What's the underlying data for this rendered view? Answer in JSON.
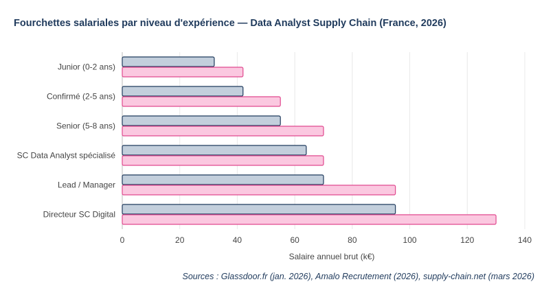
{
  "title": "Fourchettes salariales par niveau d'expérience — Data Analyst Supply Chain (France, 2026)",
  "source": "Sources : Glassdoor.fr (jan. 2026), Amalo Recrutement (2026), supply-chain.net (mars 2026)",
  "colors": {
    "series_low_fill": "#c3cfdc",
    "series_low_stroke": "#1f3a5c",
    "series_high_fill": "#fbc8e0",
    "series_high_stroke": "#e0488e",
    "grid": "#e8e8e8",
    "text": "#444444"
  },
  "chart_data": {
    "type": "bar",
    "orientation": "horizontal",
    "categories": [
      "Junior (0-2 ans)",
      "Confirmé (2-5 ans)",
      "Senior (5-8 ans)",
      "SC Data Analyst spécialisé",
      "Lead / Manager",
      "Directeur SC Digital"
    ],
    "series": [
      {
        "values": [
          32,
          42,
          55,
          64,
          70,
          95
        ]
      },
      {
        "values": [
          42,
          55,
          70,
          70,
          95,
          130
        ]
      }
    ],
    "xlabel": "Salaire annuel brut (k€)",
    "ylabel": "",
    "xlim": [
      0,
      140
    ],
    "xticks": [
      "0",
      "20",
      "40",
      "60",
      "80",
      "100",
      "120",
      "140"
    ],
    "grid": true,
    "legend": "none"
  }
}
